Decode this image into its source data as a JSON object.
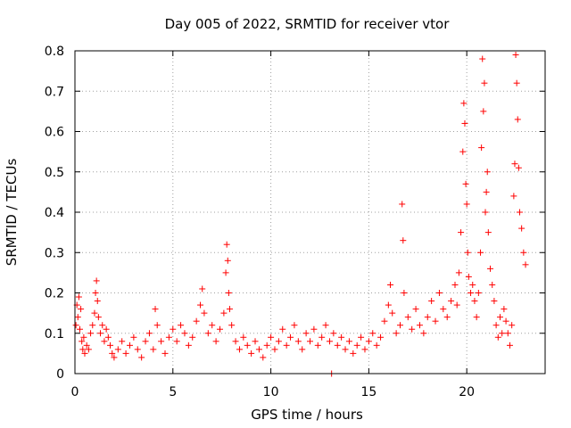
{
  "chart_data": {
    "type": "scatter",
    "title": "Day 005 of 2022, SRMTID for receiver vtor",
    "xlabel": "GPS time / hours",
    "ylabel": "SRMTID / TECUs",
    "xlim": [
      0,
      24
    ],
    "ylim": [
      0,
      0.8
    ],
    "xticks": [
      0,
      5,
      10,
      15,
      20
    ],
    "yticks": [
      0,
      0.1,
      0.2,
      0.3,
      0.4,
      0.5,
      0.6,
      0.7,
      0.8
    ],
    "xtick_labels": [
      "0",
      "5",
      "10",
      "15",
      "20"
    ],
    "ytick_labels": [
      "0",
      "0.1",
      "0.2",
      "0.3",
      "0.4",
      "0.5",
      "0.6",
      "0.7",
      "0.8"
    ],
    "marker": "+",
    "color": "#ff0000",
    "grid": true,
    "series": [
      {
        "name": "SRMTID",
        "points": [
          [
            0.05,
            0.12
          ],
          [
            0.1,
            0.17
          ],
          [
            0.15,
            0.14
          ],
          [
            0.2,
            0.19
          ],
          [
            0.25,
            0.11
          ],
          [
            0.3,
            0.16
          ],
          [
            0.35,
            0.08
          ],
          [
            0.4,
            0.06
          ],
          [
            0.45,
            0.09
          ],
          [
            0.5,
            0.05
          ],
          [
            0.6,
            0.07
          ],
          [
            0.7,
            0.06
          ],
          [
            0.8,
            0.1
          ],
          [
            0.9,
            0.12
          ],
          [
            1.0,
            0.15
          ],
          [
            1.05,
            0.2
          ],
          [
            1.1,
            0.23
          ],
          [
            1.15,
            0.18
          ],
          [
            1.2,
            0.14
          ],
          [
            1.3,
            0.1
          ],
          [
            1.4,
            0.12
          ],
          [
            1.5,
            0.08
          ],
          [
            1.6,
            0.11
          ],
          [
            1.7,
            0.09
          ],
          [
            1.8,
            0.07
          ],
          [
            1.9,
            0.05
          ],
          [
            2.0,
            0.04
          ],
          [
            2.2,
            0.06
          ],
          [
            2.4,
            0.08
          ],
          [
            2.6,
            0.05
          ],
          [
            2.8,
            0.07
          ],
          [
            3.0,
            0.09
          ],
          [
            3.2,
            0.06
          ],
          [
            3.4,
            0.04
          ],
          [
            3.6,
            0.08
          ],
          [
            3.8,
            0.1
          ],
          [
            4.0,
            0.06
          ],
          [
            4.1,
            0.16
          ],
          [
            4.2,
            0.12
          ],
          [
            4.4,
            0.08
          ],
          [
            4.6,
            0.05
          ],
          [
            4.8,
            0.09
          ],
          [
            5.0,
            0.11
          ],
          [
            5.2,
            0.08
          ],
          [
            5.4,
            0.12
          ],
          [
            5.6,
            0.1
          ],
          [
            5.8,
            0.07
          ],
          [
            6.0,
            0.09
          ],
          [
            6.2,
            0.13
          ],
          [
            6.4,
            0.17
          ],
          [
            6.5,
            0.21
          ],
          [
            6.6,
            0.15
          ],
          [
            6.8,
            0.1
          ],
          [
            7.0,
            0.12
          ],
          [
            7.2,
            0.08
          ],
          [
            7.4,
            0.11
          ],
          [
            7.6,
            0.15
          ],
          [
            7.7,
            0.25
          ],
          [
            7.75,
            0.32
          ],
          [
            7.8,
            0.28
          ],
          [
            7.85,
            0.2
          ],
          [
            7.9,
            0.16
          ],
          [
            8.0,
            0.12
          ],
          [
            8.2,
            0.08
          ],
          [
            8.4,
            0.06
          ],
          [
            8.6,
            0.09
          ],
          [
            8.8,
            0.07
          ],
          [
            9.0,
            0.05
          ],
          [
            9.2,
            0.08
          ],
          [
            9.4,
            0.06
          ],
          [
            9.6,
            0.04
          ],
          [
            9.8,
            0.07
          ],
          [
            10.0,
            0.09
          ],
          [
            10.2,
            0.06
          ],
          [
            10.4,
            0.08
          ],
          [
            10.6,
            0.11
          ],
          [
            10.8,
            0.07
          ],
          [
            11.0,
            0.09
          ],
          [
            11.2,
            0.12
          ],
          [
            11.4,
            0.08
          ],
          [
            11.6,
            0.06
          ],
          [
            11.8,
            0.1
          ],
          [
            12.0,
            0.08
          ],
          [
            12.2,
            0.11
          ],
          [
            12.4,
            0.07
          ],
          [
            12.6,
            0.09
          ],
          [
            12.8,
            0.12
          ],
          [
            13.0,
            0.08
          ],
          [
            13.1,
            0.0
          ],
          [
            13.2,
            0.1
          ],
          [
            13.4,
            0.07
          ],
          [
            13.6,
            0.09
          ],
          [
            13.8,
            0.06
          ],
          [
            14.0,
            0.08
          ],
          [
            14.2,
            0.05
          ],
          [
            14.4,
            0.07
          ],
          [
            14.6,
            0.09
          ],
          [
            14.8,
            0.06
          ],
          [
            15.0,
            0.08
          ],
          [
            15.2,
            0.1
          ],
          [
            15.4,
            0.07
          ],
          [
            15.6,
            0.09
          ],
          [
            15.8,
            0.13
          ],
          [
            16.0,
            0.17
          ],
          [
            16.1,
            0.22
          ],
          [
            16.2,
            0.15
          ],
          [
            16.4,
            0.1
          ],
          [
            16.6,
            0.12
          ],
          [
            16.7,
            0.42
          ],
          [
            16.75,
            0.33
          ],
          [
            16.8,
            0.2
          ],
          [
            17.0,
            0.14
          ],
          [
            17.2,
            0.11
          ],
          [
            17.4,
            0.16
          ],
          [
            17.6,
            0.12
          ],
          [
            17.8,
            0.1
          ],
          [
            18.0,
            0.14
          ],
          [
            18.2,
            0.18
          ],
          [
            18.4,
            0.13
          ],
          [
            18.6,
            0.2
          ],
          [
            18.8,
            0.16
          ],
          [
            19.0,
            0.14
          ],
          [
            19.2,
            0.18
          ],
          [
            19.4,
            0.22
          ],
          [
            19.5,
            0.17
          ],
          [
            19.6,
            0.25
          ],
          [
            19.7,
            0.35
          ],
          [
            19.8,
            0.55
          ],
          [
            19.85,
            0.67
          ],
          [
            19.9,
            0.62
          ],
          [
            19.95,
            0.47
          ],
          [
            20.0,
            0.42
          ],
          [
            20.05,
            0.3
          ],
          [
            20.1,
            0.24
          ],
          [
            20.2,
            0.2
          ],
          [
            20.3,
            0.22
          ],
          [
            20.4,
            0.18
          ],
          [
            20.5,
            0.14
          ],
          [
            20.6,
            0.2
          ],
          [
            20.7,
            0.3
          ],
          [
            20.75,
            0.56
          ],
          [
            20.8,
            0.78
          ],
          [
            20.85,
            0.65
          ],
          [
            20.9,
            0.72
          ],
          [
            20.95,
            0.4
          ],
          [
            21.0,
            0.45
          ],
          [
            21.05,
            0.5
          ],
          [
            21.1,
            0.35
          ],
          [
            21.2,
            0.26
          ],
          [
            21.3,
            0.22
          ],
          [
            21.4,
            0.18
          ],
          [
            21.5,
            0.12
          ],
          [
            21.6,
            0.09
          ],
          [
            21.7,
            0.14
          ],
          [
            21.8,
            0.1
          ],
          [
            21.9,
            0.16
          ],
          [
            22.0,
            0.13
          ],
          [
            22.1,
            0.1
          ],
          [
            22.2,
            0.07
          ],
          [
            22.3,
            0.12
          ],
          [
            22.4,
            0.44
          ],
          [
            22.45,
            0.52
          ],
          [
            22.5,
            0.79
          ],
          [
            22.55,
            0.72
          ],
          [
            22.6,
            0.63
          ],
          [
            22.65,
            0.51
          ],
          [
            22.7,
            0.4
          ],
          [
            22.8,
            0.36
          ],
          [
            22.9,
            0.3
          ],
          [
            23.0,
            0.27
          ]
        ]
      }
    ]
  }
}
